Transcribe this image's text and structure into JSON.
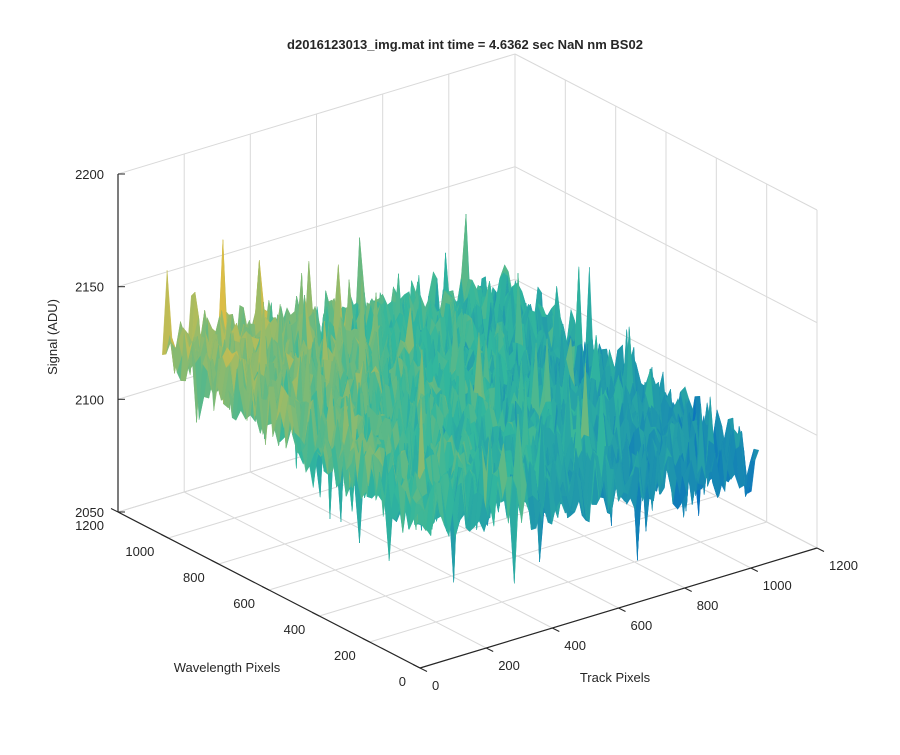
{
  "chart_data": {
    "type": "surface",
    "title": "d2016123013_img.mat int time = 4.6362 sec  NaN nm BS02",
    "xlabel": "Track Pixels",
    "ylabel": "Wavelength Pixels",
    "zlabel": "Signal (ADU)",
    "xlim": [
      0,
      1200
    ],
    "ylim": [
      0,
      1200
    ],
    "zlim": [
      2050,
      2200
    ],
    "x_ticks": [
      "0",
      "200",
      "400",
      "600",
      "800",
      "1000",
      "1200"
    ],
    "y_ticks": [
      "0",
      "200",
      "400",
      "600",
      "800",
      "1000",
      "1200"
    ],
    "z_ticks": [
      "2050",
      "2100",
      "2150",
      "2200"
    ],
    "grid": true,
    "colormap": "parula",
    "surface": {
      "x_range": [
        0,
        1024
      ],
      "y_range": [
        0,
        1024
      ],
      "mean_signal_far_wavelength_edge": 2135,
      "mean_signal_near_wavelength_edge": 2118,
      "mean_signal_far_track_edge": 2108,
      "noise_amplitude": 15,
      "spike_amplitude": 35
    },
    "colors": {
      "axis": "#262626",
      "grid": "#d9d9d9",
      "low": "#0a72be",
      "mid": "#32b79d",
      "high": "#f5be39"
    }
  }
}
